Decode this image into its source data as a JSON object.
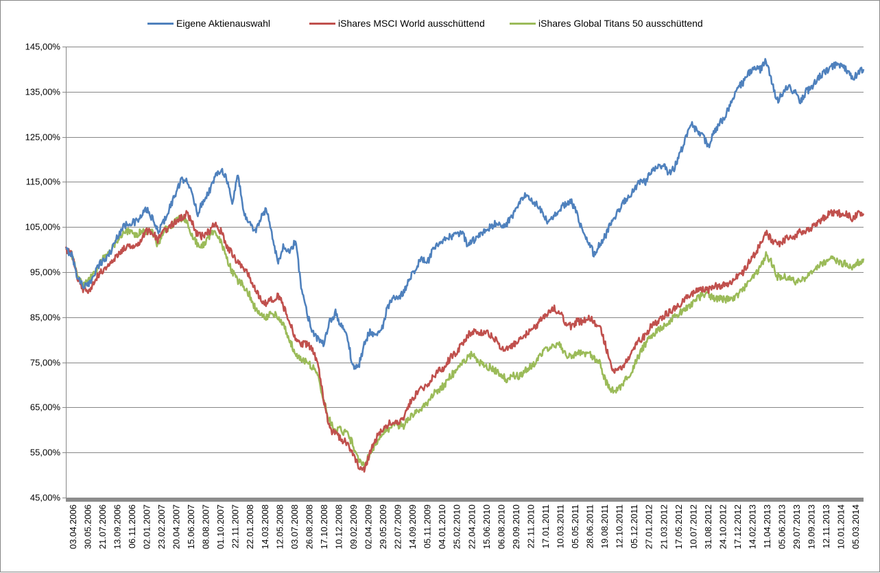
{
  "chart_data": {
    "type": "line",
    "title": "",
    "xlabel": "",
    "ylabel": "",
    "ylim": [
      45,
      145
    ],
    "y_ticks": [
      "45,00%",
      "55,00%",
      "65,00%",
      "75,00%",
      "85,00%",
      "95,00%",
      "105,00%",
      "115,00%",
      "125,00%",
      "135,00%",
      "145,00%"
    ],
    "x_tick_labels": [
      "03.04.2006",
      "30.05.2006",
      "21.07.2006",
      "13.09.2006",
      "06.11.2006",
      "02.01.2007",
      "23.02.2007",
      "20.04.2007",
      "15.06.2007",
      "08.08.2007",
      "01.10.2007",
      "22.11.2007",
      "22.01.2008",
      "14.03.2008",
      "12.05.2008",
      "03.07.2008",
      "26.08.2008",
      "17.10.2008",
      "10.12.2008",
      "09.02.2009",
      "02.04.2009",
      "29.05.2009",
      "22.07.2009",
      "14.09.2009",
      "05.11.2009",
      "04.01.2010",
      "25.02.2010",
      "22.04.2010",
      "15.06.2010",
      "06.08.2010",
      "29.09.2010",
      "22.11.2010",
      "17.01.2011",
      "10.03.2011",
      "05.05.2011",
      "28.06.2011",
      "19.08.2011",
      "12.10.2011",
      "05.12.2011",
      "27.01.2012",
      "21.03.2012",
      "17.05.2012",
      "10.07.2012",
      "31.08.2012",
      "24.10.2012",
      "17.12.2012",
      "14.02.2013",
      "11.04.2013",
      "05.06.2013",
      "29.07.2013",
      "19.09.2013",
      "12.11.2013",
      "10.01.2014",
      "05.03.2014"
    ],
    "grid": true,
    "legend_position": "top",
    "series": [
      {
        "name": "Eigene Aktienauswahl",
        "color": "#4F81BD",
        "values": [
          100,
          99,
          94,
          92,
          92,
          95,
          97,
          98,
          100,
          103,
          105,
          106,
          106,
          107,
          109,
          107,
          104,
          106,
          109,
          112,
          115,
          116,
          112,
          108,
          111,
          113,
          116,
          118,
          116,
          110,
          117,
          108,
          106,
          104,
          107,
          109,
          103,
          97,
          101,
          99,
          102,
          92,
          86,
          82,
          80,
          79,
          84,
          86,
          83,
          81,
          74,
          74,
          79,
          82,
          81,
          82,
          87,
          89,
          89,
          91,
          94,
          96,
          98,
          97,
          100,
          101,
          102,
          103,
          103,
          104,
          101,
          102,
          103,
          104,
          105,
          106,
          105,
          106,
          108,
          110,
          112,
          111,
          110,
          108,
          106,
          107,
          109,
          110,
          111,
          108,
          104,
          102,
          99,
          101,
          103,
          106,
          108,
          110,
          112,
          113,
          115,
          115,
          117,
          118,
          119,
          117,
          118,
          121,
          125,
          128,
          126,
          125,
          123,
          126,
          128,
          130,
          133,
          136,
          137,
          139,
          140,
          140,
          142,
          137,
          133,
          135,
          136,
          135,
          133,
          135,
          136,
          138,
          139,
          140,
          141,
          141,
          140,
          138,
          139,
          140
        ]
      },
      {
        "name": "iShares MSCI World ausschüttend",
        "color": "#C0504D",
        "values": [
          100,
          99,
          94,
          91,
          91,
          93,
          95,
          96,
          97,
          99,
          100,
          101,
          101,
          102,
          104,
          104,
          102,
          104,
          105,
          106,
          107,
          108,
          106,
          103,
          103,
          104,
          106,
          104,
          101,
          99,
          97,
          96,
          94,
          91,
          89,
          88,
          89,
          90,
          87,
          84,
          80,
          79,
          79,
          78,
          74,
          66,
          60,
          59,
          58,
          57,
          55,
          52,
          51,
          55,
          58,
          60,
          61,
          62,
          62,
          63,
          66,
          68,
          69,
          70,
          72,
          73,
          74,
          76,
          77,
          79,
          81,
          82,
          81,
          82,
          81,
          80,
          78,
          78,
          79,
          80,
          81,
          82,
          83,
          85,
          86,
          87,
          86,
          84,
          83,
          84,
          84,
          85,
          84,
          83,
          79,
          74,
          73,
          74,
          76,
          78,
          80,
          81,
          83,
          84,
          85,
          86,
          87,
          88,
          89,
          90,
          91,
          91,
          91,
          92,
          92,
          92,
          93,
          94,
          95,
          97,
          99,
          101,
          104,
          102,
          101,
          102,
          103,
          103,
          104,
          104,
          105,
          106,
          107,
          108,
          108,
          108,
          108,
          107,
          108,
          108
        ]
      },
      {
        "name": "iShares Global Titans 50 ausschüttend",
        "color": "#9BBB59",
        "values": [
          100,
          99,
          94,
          92,
          93,
          95,
          97,
          99,
          100,
          102,
          104,
          104,
          103,
          104,
          104,
          104,
          101,
          104,
          105,
          106,
          107,
          106,
          103,
          101,
          101,
          103,
          104,
          102,
          98,
          95,
          93,
          92,
          90,
          87,
          86,
          85,
          86,
          85,
          83,
          80,
          77,
          76,
          75,
          74,
          72,
          66,
          62,
          60,
          60,
          59,
          57,
          53,
          52,
          55,
          57,
          59,
          60,
          61,
          61,
          61,
          63,
          64,
          65,
          66,
          68,
          69,
          70,
          72,
          73,
          75,
          76,
          77,
          75,
          74,
          74,
          73,
          72,
          71,
          72,
          72,
          73,
          74,
          75,
          77,
          78,
          79,
          79,
          77,
          76,
          77,
          77,
          77,
          76,
          75,
          71,
          69,
          69,
          70,
          72,
          74,
          77,
          79,
          81,
          82,
          83,
          84,
          85,
          86,
          87,
          88,
          89,
          90,
          90,
          89,
          89,
          89,
          89,
          90,
          91,
          93,
          94,
          96,
          99,
          97,
          94,
          94,
          94,
          93,
          93,
          94,
          95,
          96,
          97,
          98,
          98,
          97,
          97,
          96,
          97,
          98
        ]
      }
    ]
  }
}
